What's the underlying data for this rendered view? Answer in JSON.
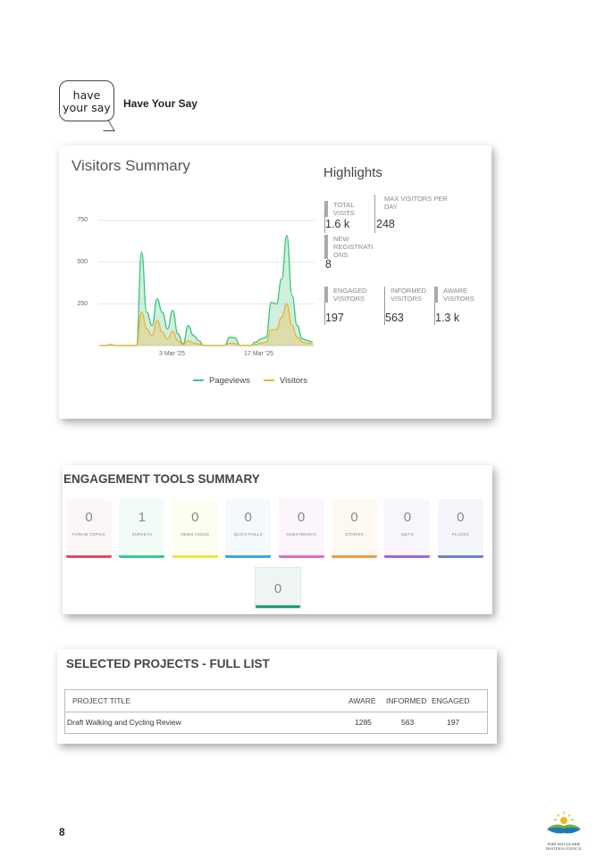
{
  "header": {
    "logo_text": "have your say",
    "title": "Have Your Say"
  },
  "visitors_summary": {
    "title": "Visitors Summary",
    "chart_data": {
      "type": "area",
      "y_ticks": [
        "750",
        "500",
        "250"
      ],
      "x_ticks": [
        "3 Mar '25",
        "17 Mar '25"
      ],
      "ylim": [
        0,
        750
      ],
      "series": [
        {
          "name": "Pageviews",
          "color": "#3cc47c",
          "values": [
            0,
            0,
            5,
            0,
            0,
            0,
            0,
            0,
            560,
            200,
            120,
            280,
            200,
            100,
            210,
            70,
            10,
            120,
            60,
            30,
            0,
            0,
            0,
            0,
            0,
            50,
            45,
            0,
            0,
            0,
            20,
            40,
            50,
            260,
            250,
            400,
            660,
            300,
            120,
            40,
            30,
            20
          ]
        },
        {
          "name": "Visitors",
          "color": "#f0b429",
          "values": [
            0,
            0,
            2,
            0,
            0,
            0,
            0,
            0,
            200,
            100,
            60,
            150,
            80,
            40,
            85,
            30,
            5,
            30,
            15,
            10,
            0,
            0,
            0,
            0,
            0,
            15,
            12,
            0,
            0,
            0,
            6,
            15,
            20,
            95,
            95,
            170,
            250,
            120,
            50,
            20,
            15,
            10
          ]
        }
      ],
      "legend": [
        "Pageviews",
        "Visitors"
      ]
    },
    "highlights": {
      "title": "Highlights",
      "stats": [
        {
          "label": "TOTAL VISITS",
          "value": "1.6 k"
        },
        {
          "label": "MAX VISITORS PER DAY",
          "value": "248"
        },
        {
          "label": "NEW REGISTRATI ONS",
          "value": "8"
        },
        {
          "label": "ENGAGED VISITORS",
          "value": "197"
        },
        {
          "label": "INFORMED VISITORS",
          "value": "563"
        },
        {
          "label": "AWARE VISITORS",
          "value": "1.3 k"
        }
      ]
    }
  },
  "engagement_tools": {
    "title": "ENGAGEMENT TOOLS SUMMARY",
    "tools": [
      {
        "label": "FORUM TOPICS",
        "value": "0",
        "color": "#e8475f",
        "bg": "#fdf6f7"
      },
      {
        "label": "SURVEYS",
        "value": "1",
        "color": "#36c98e",
        "bg": "#f3fbf7"
      },
      {
        "label": "NEWS FEEDS",
        "value": "0",
        "color": "#f4e23c",
        "bg": "#fefdf2"
      },
      {
        "label": "QUICK POLLS",
        "value": "0",
        "color": "#3aa8e0",
        "bg": "#f3f9fd"
      },
      {
        "label": "GUESTBOOKS",
        "value": "0",
        "color": "#e06ad6",
        "bg": "#fcf5fc"
      },
      {
        "label": "STORIES",
        "value": "0",
        "color": "#f59a3c",
        "bg": "#fef8f2"
      },
      {
        "label": "Q&A'S",
        "value": "0",
        "color": "#9a6ad8",
        "bg": "#f8f5fc"
      },
      {
        "label": "PLACES",
        "value": "0",
        "color": "#6d7fd8",
        "bg": "#f5f6fc"
      }
    ],
    "extra": {
      "value": "0",
      "color": "#1f9e78"
    }
  },
  "projects": {
    "title": "SELECTED PROJECTS - FULL LIST",
    "columns": [
      "PROJECT TITLE",
      "AWARE",
      "INFORMED",
      "ENGAGED"
    ],
    "rows": [
      {
        "title": "Draft Walking and Cycling Review",
        "aware": "1285",
        "informed": "563",
        "engaged": "197"
      }
    ]
  },
  "footer": {
    "page_number": "8",
    "council": "PORT MACQUARIE HASTINGS COUNCIL"
  }
}
